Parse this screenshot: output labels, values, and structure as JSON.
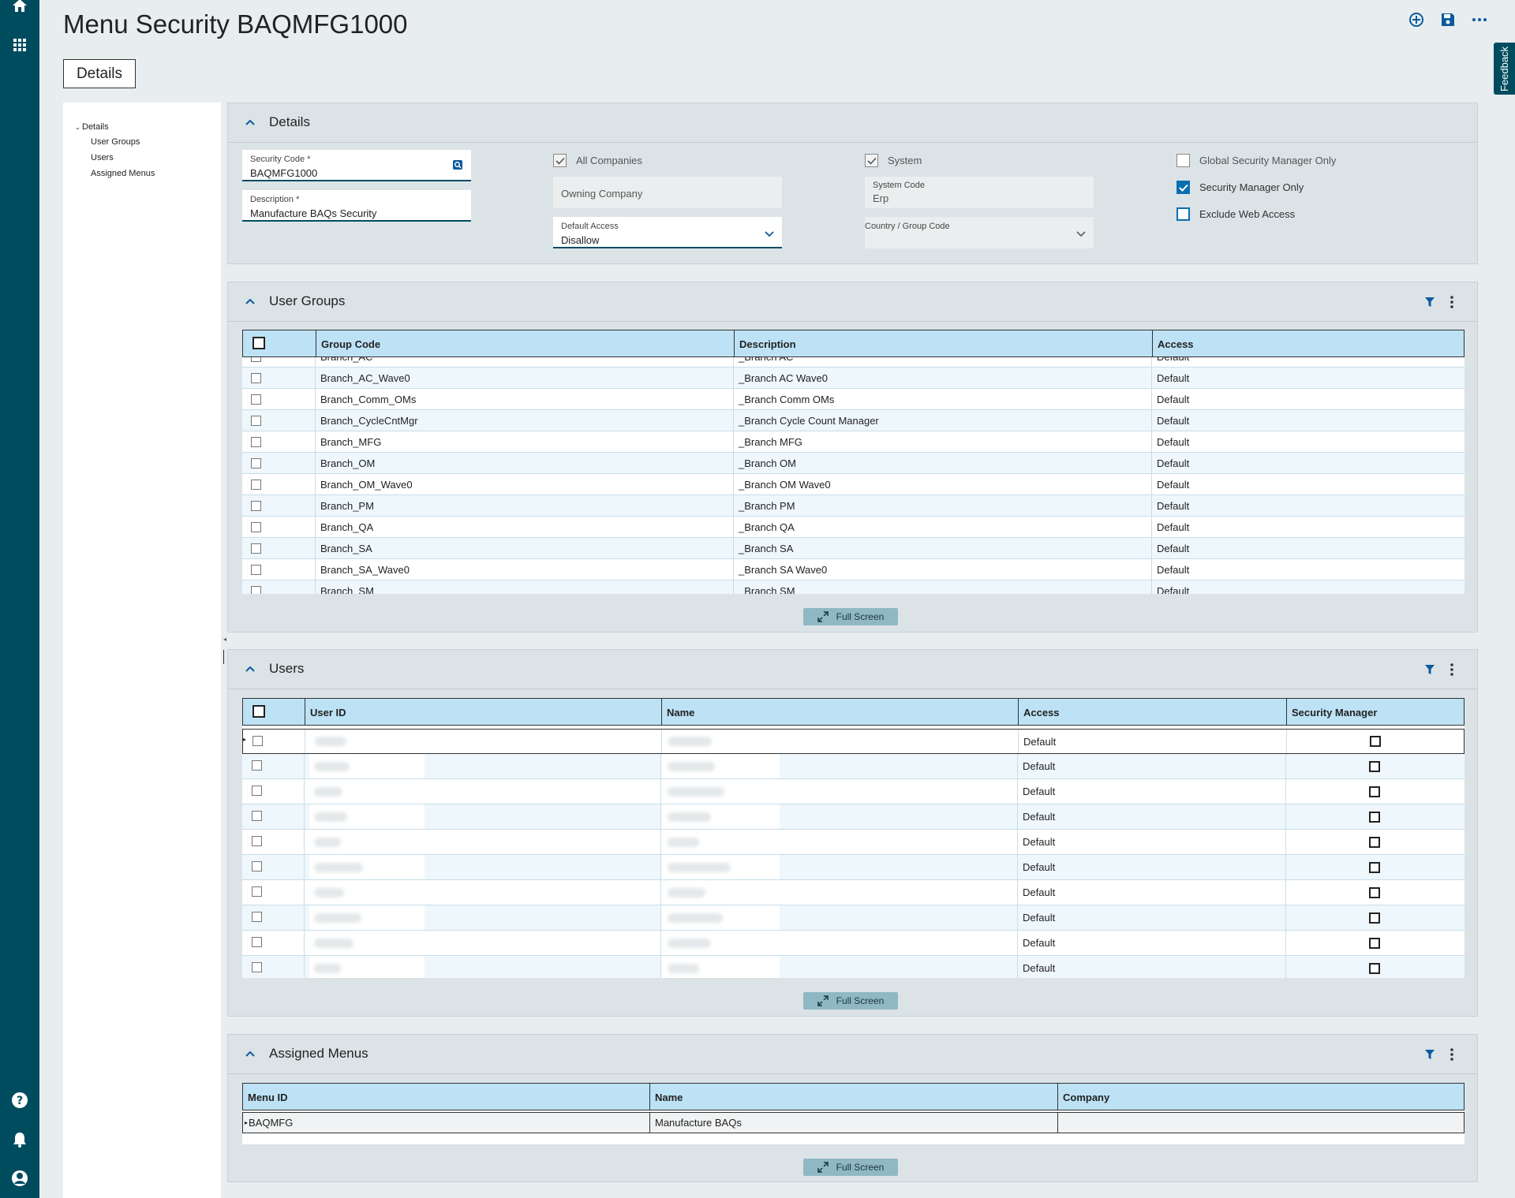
{
  "page": {
    "title": "Menu Security BAQMFG1000",
    "tab_label": "Details",
    "feedback_label": "Feedback"
  },
  "nav": {
    "items": [
      {
        "label": "Details"
      },
      {
        "label": "User Groups"
      },
      {
        "label": "Users"
      },
      {
        "label": "Assigned Menus"
      }
    ]
  },
  "details": {
    "title": "Details",
    "security_code": {
      "label": "Security Code *",
      "value": "BAQMFG1000"
    },
    "description": {
      "label": "Description *",
      "value": "Manufacture BAQs Security"
    },
    "all_companies": {
      "label": "All Companies",
      "checked": true
    },
    "owning_company": {
      "placeholder": "Owning Company"
    },
    "default_access": {
      "label": "Default Access",
      "value": "Disallow"
    },
    "system": {
      "label": "System",
      "checked": true
    },
    "system_code": {
      "label": "System Code",
      "value": "Erp"
    },
    "country_group_code": {
      "label": "Country / Group Code",
      "value": ""
    },
    "global_security_manager_only": {
      "label": "Global Security Manager Only",
      "checked": false
    },
    "security_manager_only": {
      "label": "Security Manager Only",
      "checked": true
    },
    "exclude_web_access": {
      "label": "Exclude Web Access",
      "checked": false
    }
  },
  "user_groups": {
    "title": "User Groups",
    "columns": [
      "Group Code",
      "Description",
      "Access"
    ],
    "rows": [
      {
        "code": "Branch_AC",
        "description": "_Branch AC",
        "access": "Default"
      },
      {
        "code": "Branch_AC_Wave0",
        "description": "_Branch AC Wave0",
        "access": "Default"
      },
      {
        "code": "Branch_Comm_OMs",
        "description": "_Branch Comm OMs",
        "access": "Default"
      },
      {
        "code": "Branch_CycleCntMgr",
        "description": "_Branch Cycle Count Manager",
        "access": "Default"
      },
      {
        "code": "Branch_MFG",
        "description": "_Branch MFG",
        "access": "Default"
      },
      {
        "code": "Branch_OM",
        "description": "_Branch OM",
        "access": "Default"
      },
      {
        "code": "Branch_OM_Wave0",
        "description": "_Branch OM Wave0",
        "access": "Default"
      },
      {
        "code": "Branch_PM",
        "description": "_Branch PM",
        "access": "Default"
      },
      {
        "code": "Branch_QA",
        "description": "_Branch QA",
        "access": "Default"
      },
      {
        "code": "Branch_SA",
        "description": "_Branch SA",
        "access": "Default"
      },
      {
        "code": "Branch_SA_Wave0",
        "description": "_Branch SA Wave0",
        "access": "Default"
      },
      {
        "code": "Branch_SM",
        "description": "_Branch SM",
        "access": "Default"
      }
    ],
    "full_screen_label": "Full Screen"
  },
  "users": {
    "title": "Users",
    "columns": [
      "User ID",
      "Name",
      "Access",
      "Security Manager"
    ],
    "rows": [
      {
        "access": "Default",
        "security_manager": false
      },
      {
        "access": "Default",
        "security_manager": false
      },
      {
        "access": "Default",
        "security_manager": false
      },
      {
        "access": "Default",
        "security_manager": false
      },
      {
        "access": "Default",
        "security_manager": false
      },
      {
        "access": "Default",
        "security_manager": false
      },
      {
        "access": "Default",
        "security_manager": false
      },
      {
        "access": "Default",
        "security_manager": false
      },
      {
        "access": "Default",
        "security_manager": false
      },
      {
        "access": "Default",
        "security_manager": false
      }
    ],
    "full_screen_label": "Full Screen"
  },
  "assigned_menus": {
    "title": "Assigned Menus",
    "columns": [
      "Menu ID",
      "Name",
      "Company"
    ],
    "rows": [
      {
        "menu_id": "BAQMFG",
        "name": "Manufacture BAQs",
        "company": ""
      }
    ],
    "full_screen_label": "Full Screen"
  },
  "colors": {
    "rail": "#004c5f",
    "grid_header": "#bde2f5",
    "card_bg": "#dbe3e7",
    "accent_blue": "#0b6fb0"
  }
}
